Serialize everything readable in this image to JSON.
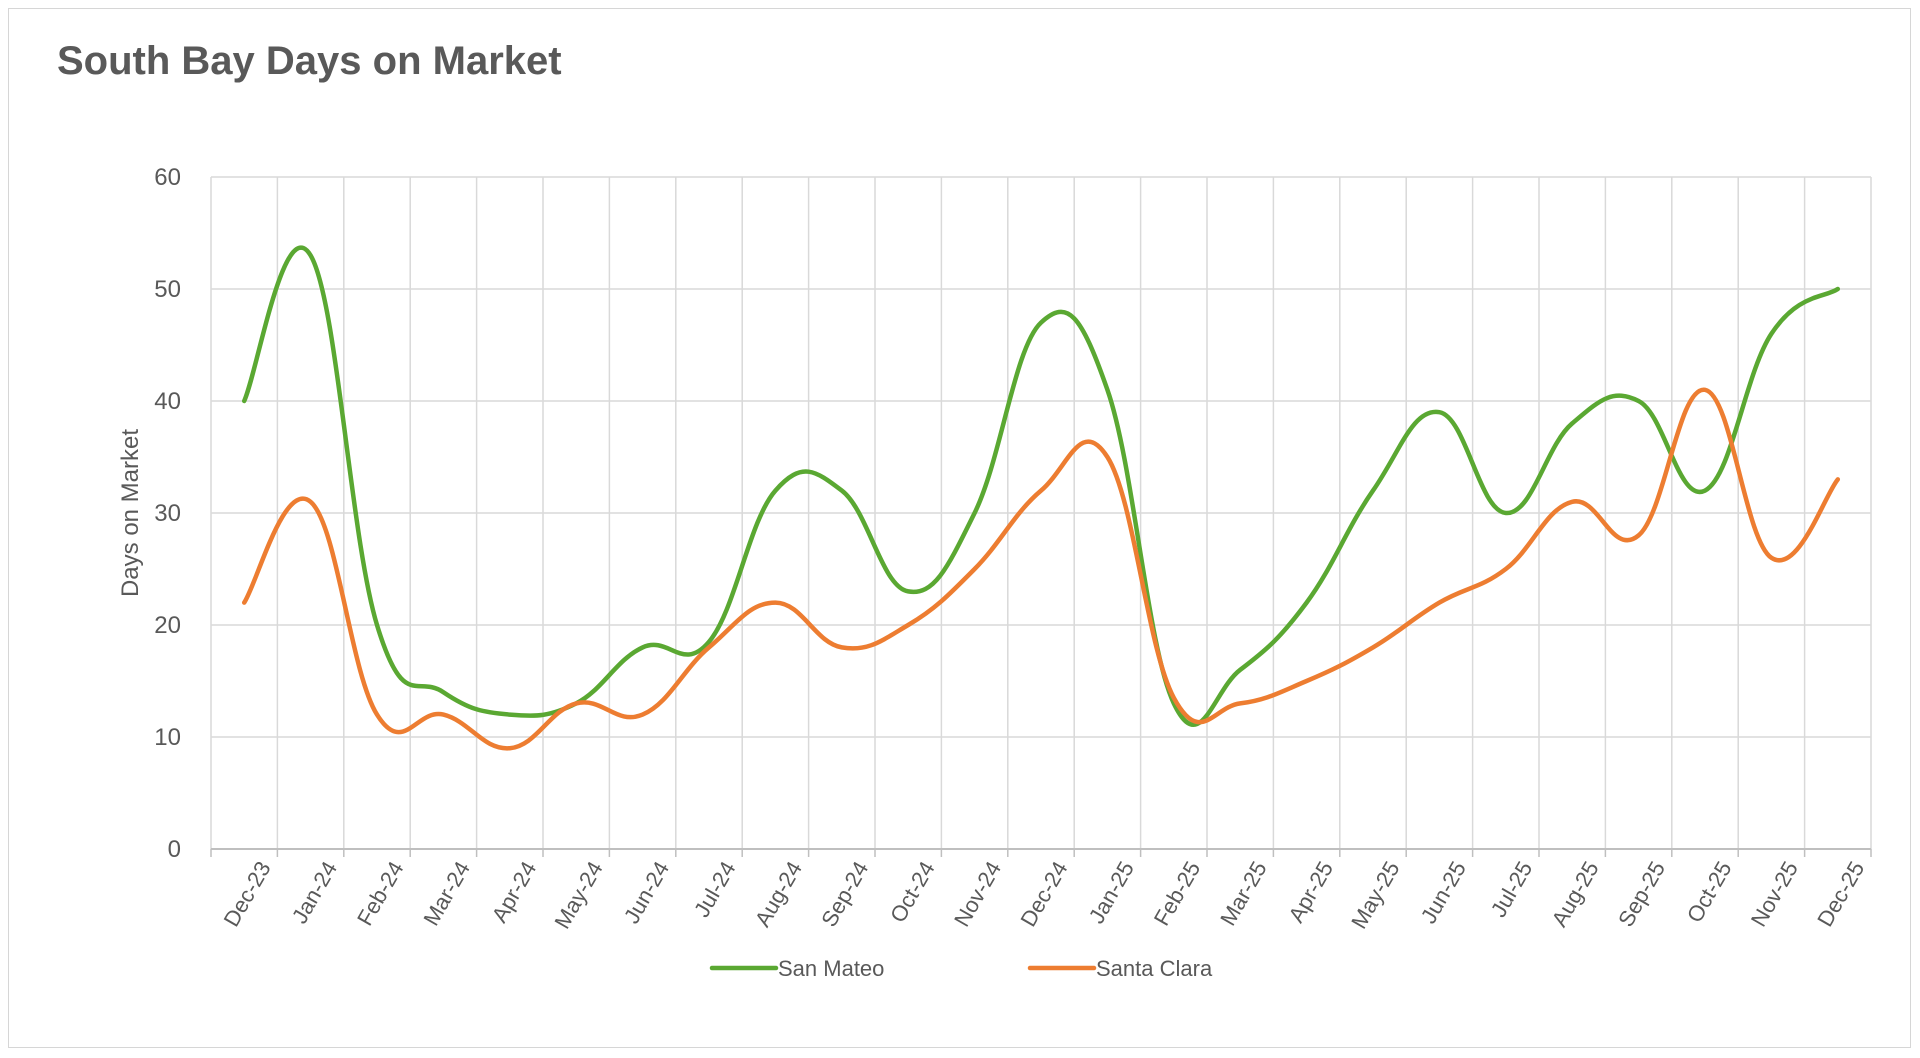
{
  "chart_data": {
    "type": "line",
    "title": "South Bay Days on Market",
    "xlabel": "",
    "ylabel": "Days on Market",
    "ylim": [
      0,
      60
    ],
    "yticks": [
      0,
      10,
      20,
      30,
      40,
      50,
      60
    ],
    "grid": true,
    "legend_position": "bottom",
    "categories": [
      "Dec-23",
      "Jan-24",
      "Feb-24",
      "Mar-24",
      "Apr-24",
      "May-24",
      "Jun-24",
      "Jul-24",
      "Aug-24",
      "Sep-24",
      "Oct-24",
      "Nov-24",
      "Dec-24",
      "Jan-25",
      "Feb-25",
      "Mar-25",
      "Apr-25",
      "May-25",
      "Jun-25",
      "Jul-25",
      "Aug-25",
      "Sep-25",
      "Oct-25",
      "Nov-25",
      "Dec-25"
    ],
    "series": [
      {
        "name": "San Mateo",
        "color": "#5aa832",
        "x": [
          "2023-12-15",
          "2024-01-15",
          "2024-02-15",
          "2024-03-15",
          "2024-04-15",
          "2024-05-15",
          "2024-06-15",
          "2024-07-15",
          "2024-08-15",
          "2024-09-15",
          "2024-10-15",
          "2024-11-15",
          "2024-12-15",
          "2025-01-15",
          "2025-02-15",
          "2025-03-15",
          "2025-04-15",
          "2025-05-15",
          "2025-06-15",
          "2025-07-15",
          "2025-08-15",
          "2025-09-15",
          "2025-10-15",
          "2025-11-15",
          "2025-12-15"
        ],
        "values": [
          40,
          53,
          20,
          14,
          12,
          13,
          18,
          18.5,
          32,
          32,
          23,
          30,
          47,
          41,
          13,
          16,
          22,
          32,
          39,
          30,
          38,
          40,
          32,
          46,
          50
        ]
      },
      {
        "name": "Santa Clara",
        "color": "#ed7d31",
        "x": [
          "2023-12-15",
          "2024-01-15",
          "2024-02-15",
          "2024-03-15",
          "2024-04-15",
          "2024-05-15",
          "2024-06-15",
          "2024-07-15",
          "2024-08-15",
          "2024-09-15",
          "2024-10-15",
          "2024-11-15",
          "2024-12-15",
          "2025-01-15",
          "2025-02-15",
          "2025-03-15",
          "2025-04-15",
          "2025-05-15",
          "2025-06-15",
          "2025-07-15",
          "2025-08-15",
          "2025-09-15",
          "2025-10-15",
          "2025-11-15",
          "2025-12-15"
        ],
        "values": [
          22,
          31,
          12,
          12,
          9,
          13,
          12,
          18,
          22,
          18,
          20,
          25,
          32,
          35,
          13.5,
          13,
          15,
          18,
          22,
          25,
          31,
          28,
          41,
          26,
          33
        ]
      }
    ]
  }
}
